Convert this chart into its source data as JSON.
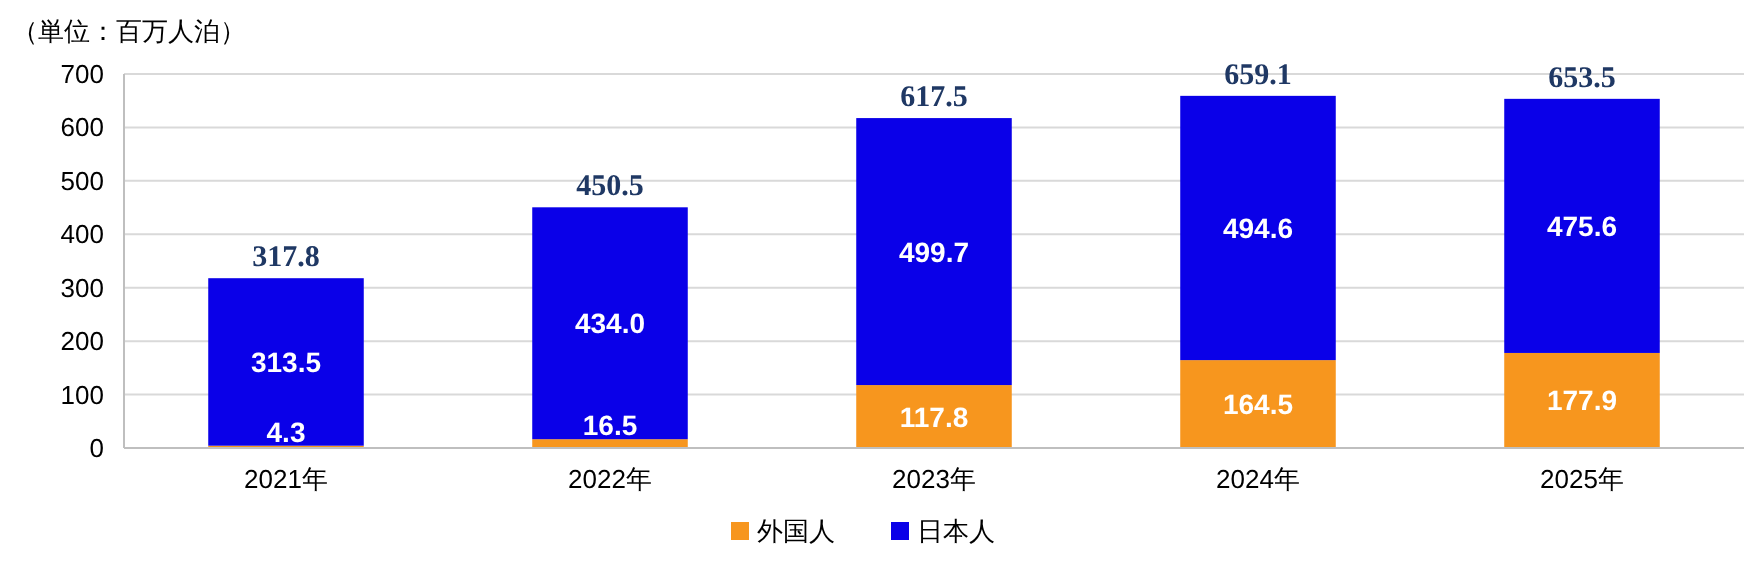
{
  "chart_data": {
    "type": "bar",
    "stacked": true,
    "categories": [
      "2021年",
      "2022年",
      "2023年",
      "2024年",
      "2025年"
    ],
    "series": [
      {
        "name": "外国人",
        "color": "#f7961e",
        "values": [
          4.3,
          16.5,
          117.8,
          164.5,
          177.9
        ],
        "value_labels": [
          "4.3",
          "16.5",
          "117.8",
          "164.5",
          "177.9"
        ]
      },
      {
        "name": "日本人",
        "color": "#0a00e8",
        "values": [
          313.5,
          434.0,
          499.7,
          494.6,
          475.6
        ],
        "value_labels": [
          "313.5",
          "434.0",
          "499.7",
          "494.6",
          "475.6"
        ]
      }
    ],
    "totals": [
      "317.8",
      "450.5",
      "617.5",
      "659.1",
      "653.5"
    ],
    "ylim": [
      0,
      700
    ],
    "yticks": [
      0,
      100,
      200,
      300,
      400,
      500,
      600,
      700
    ],
    "grid": "y",
    "legend": "bottom",
    "annotations": [
      "（単位：百万人泊）"
    ]
  }
}
